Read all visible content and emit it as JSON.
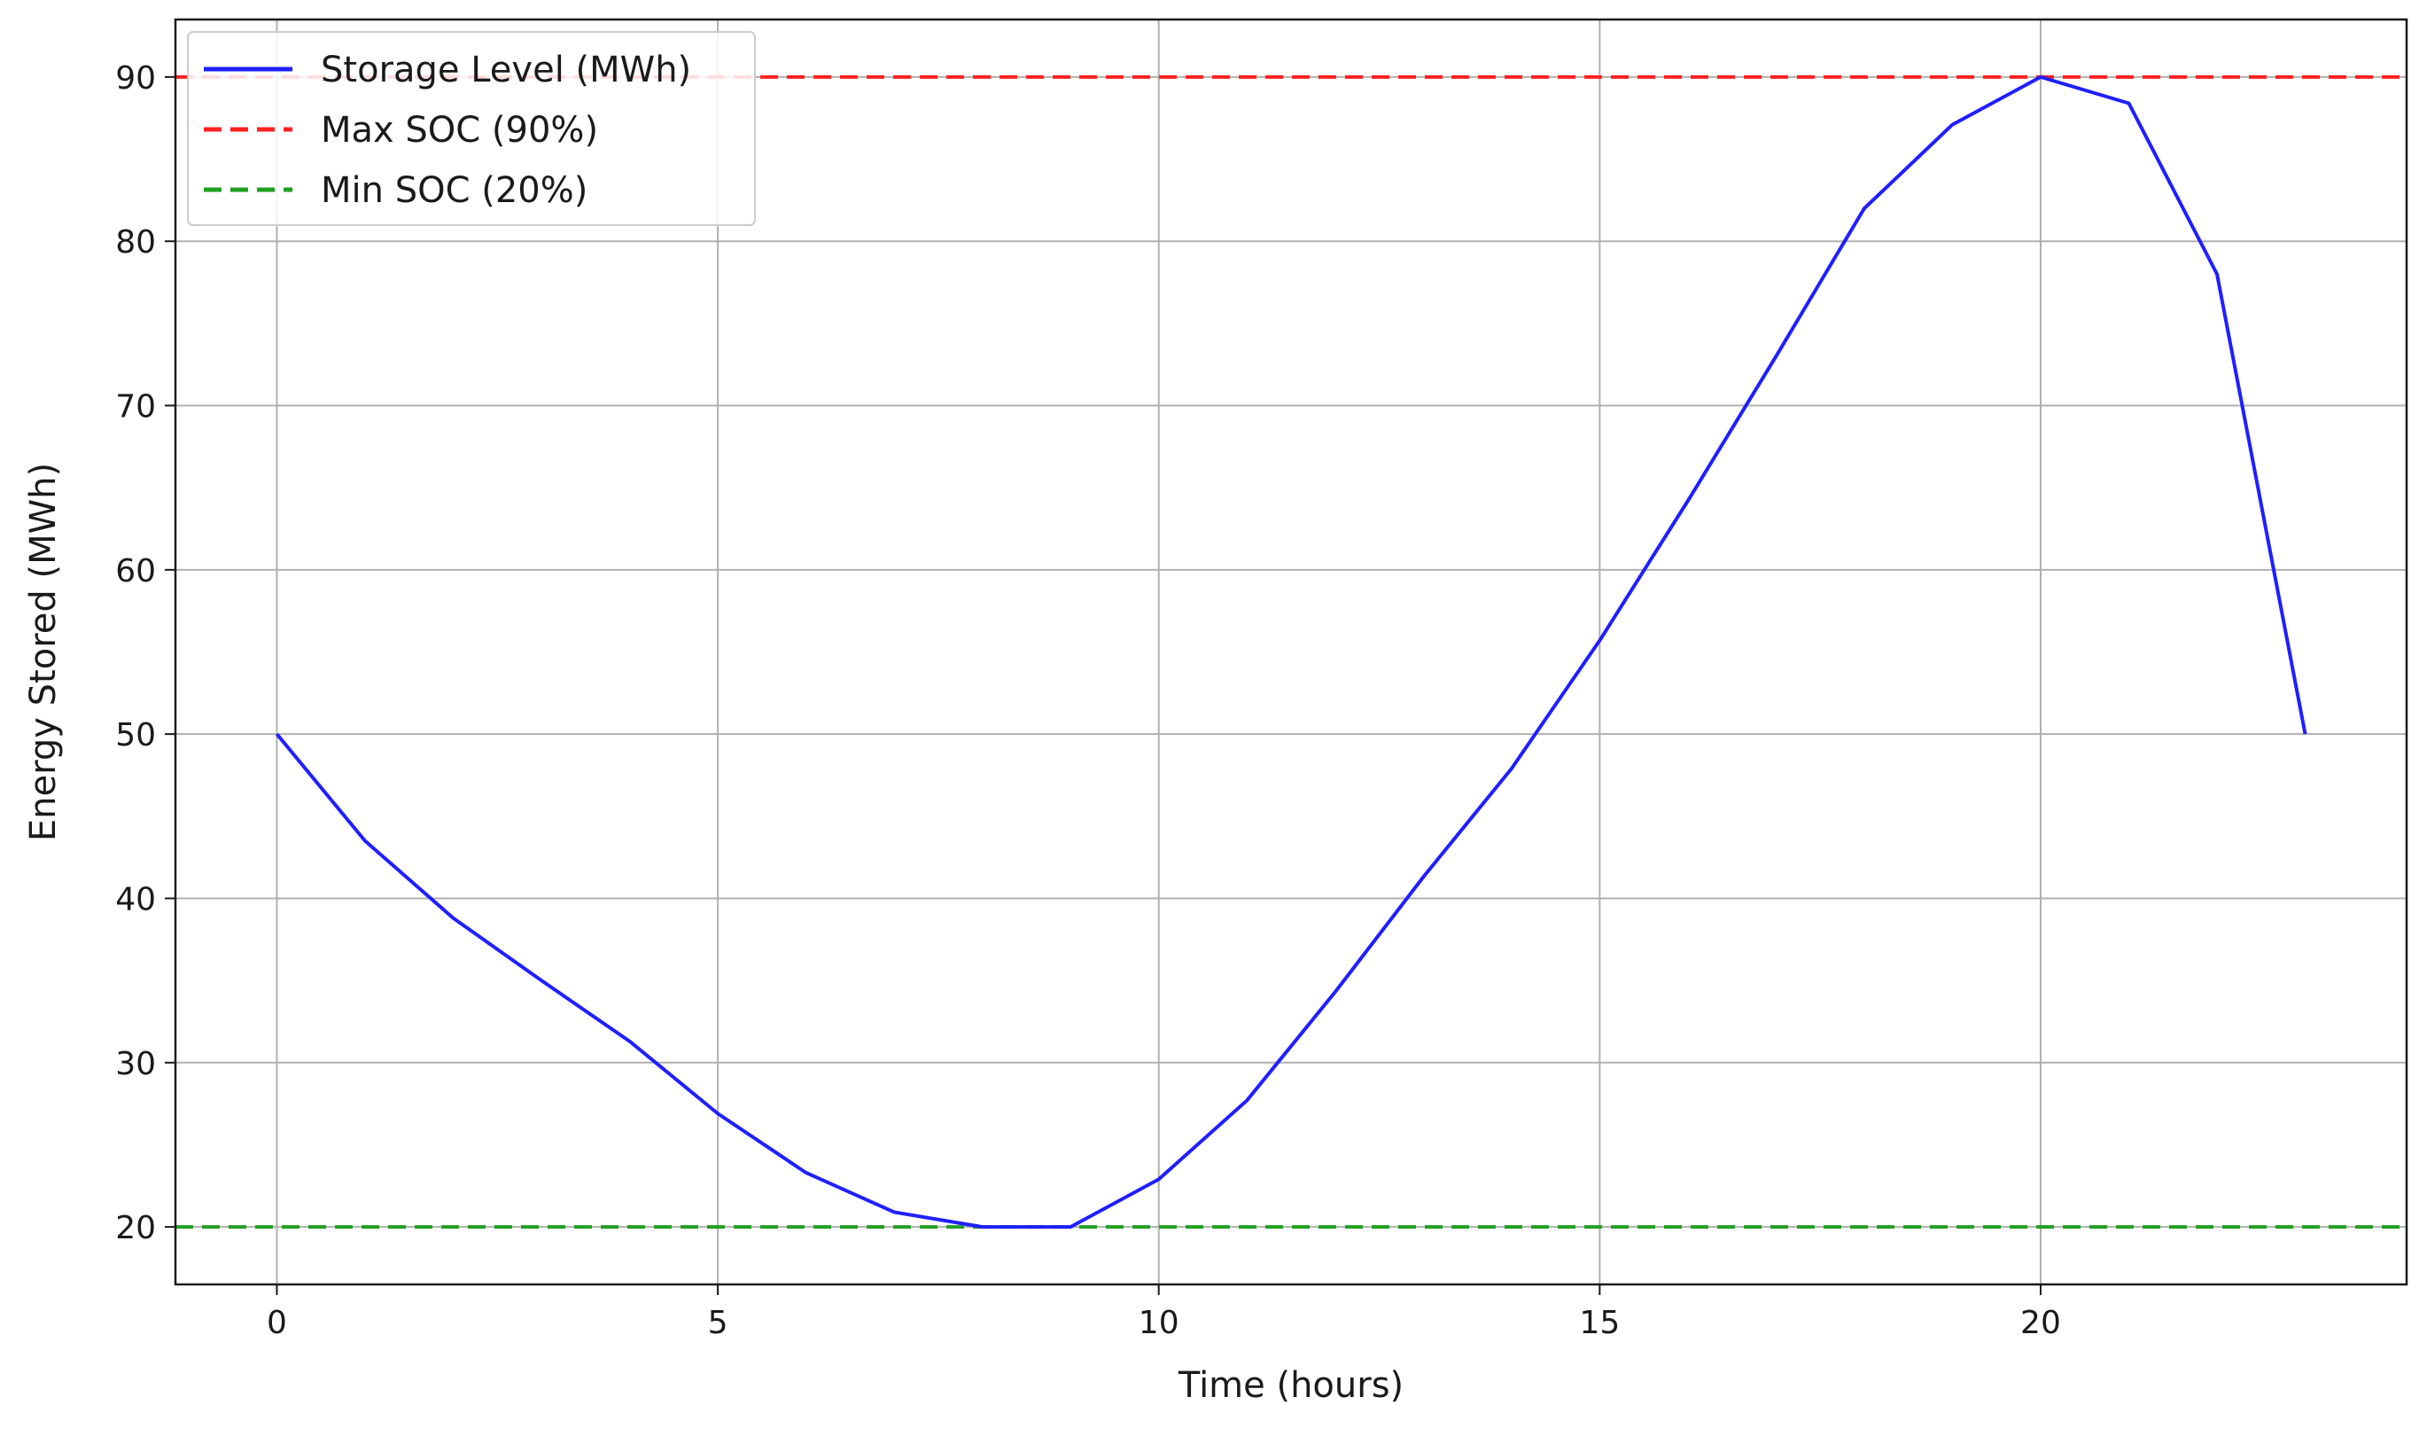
{
  "chart_data": {
    "type": "line",
    "title": "",
    "xlabel": "Time (hours)",
    "ylabel": "Energy Stored (MWh)",
    "xlim": [
      -1.15,
      24.15
    ],
    "ylim": [
      16.5,
      93.5
    ],
    "xticks": [
      0,
      5,
      10,
      15,
      20
    ],
    "yticks": [
      20,
      30,
      40,
      50,
      60,
      70,
      80,
      90
    ],
    "grid": true,
    "legend_position": "upper-left",
    "series": [
      {
        "name": "Storage Level (MWh)",
        "color": "#1f1fff",
        "style": "solid",
        "x": [
          0,
          1,
          2,
          3,
          4,
          5,
          6,
          7,
          8,
          9,
          10,
          11,
          12,
          13,
          14,
          15,
          16,
          17,
          18,
          19,
          20,
          21,
          22,
          23
        ],
        "y": [
          50.0,
          43.5,
          38.8,
          35.0,
          31.3,
          26.9,
          23.3,
          20.9,
          20.0,
          20.0,
          22.9,
          27.7,
          34.3,
          41.3,
          47.9,
          55.7,
          64.2,
          73.0,
          82.0,
          87.1,
          90.0,
          88.4,
          78.0,
          50.0
        ]
      },
      {
        "name": "Max SOC (90%)",
        "color": "#ff2020",
        "style": "dashed",
        "hline": 90
      },
      {
        "name": "Min SOC (20%)",
        "color": "#20a020",
        "style": "dashed",
        "hline": 20
      }
    ]
  }
}
